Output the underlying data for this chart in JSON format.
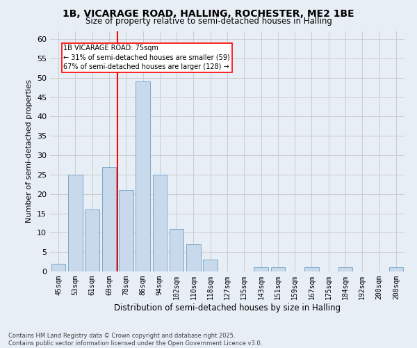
{
  "title_line1": "1B, VICARAGE ROAD, HALLING, ROCHESTER, ME2 1BE",
  "title_line2": "Size of property relative to semi-detached houses in Halling",
  "xlabel": "Distribution of semi-detached houses by size in Halling",
  "ylabel": "Number of semi-detached properties",
  "categories": [
    "45sqm",
    "53sqm",
    "61sqm",
    "69sqm",
    "78sqm",
    "86sqm",
    "94sqm",
    "102sqm",
    "110sqm",
    "118sqm",
    "127sqm",
    "135sqm",
    "143sqm",
    "151sqm",
    "159sqm",
    "167sqm",
    "175sqm",
    "184sqm",
    "192sqm",
    "200sqm",
    "208sqm"
  ],
  "values": [
    2,
    25,
    16,
    27,
    21,
    49,
    25,
    11,
    7,
    3,
    0,
    0,
    1,
    1,
    0,
    1,
    0,
    1,
    0,
    0,
    1
  ],
  "bar_color": "#c9d9ec",
  "bar_edge_color": "#7aa8cc",
  "vline_color": "red",
  "annotation_title": "1B VICARAGE ROAD: 75sqm",
  "annotation_line1": "← 31% of semi-detached houses are smaller (59)",
  "annotation_line2": "67% of semi-detached houses are larger (128) →",
  "annotation_box_color": "red",
  "ylim": [
    0,
    62
  ],
  "yticks": [
    0,
    5,
    10,
    15,
    20,
    25,
    30,
    35,
    40,
    45,
    50,
    55,
    60
  ],
  "grid_color": "#cccccc",
  "bg_color": "#e8eef5",
  "footer_line1": "Contains HM Land Registry data © Crown copyright and database right 2025.",
  "footer_line2": "Contains public sector information licensed under the Open Government Licence v3.0."
}
